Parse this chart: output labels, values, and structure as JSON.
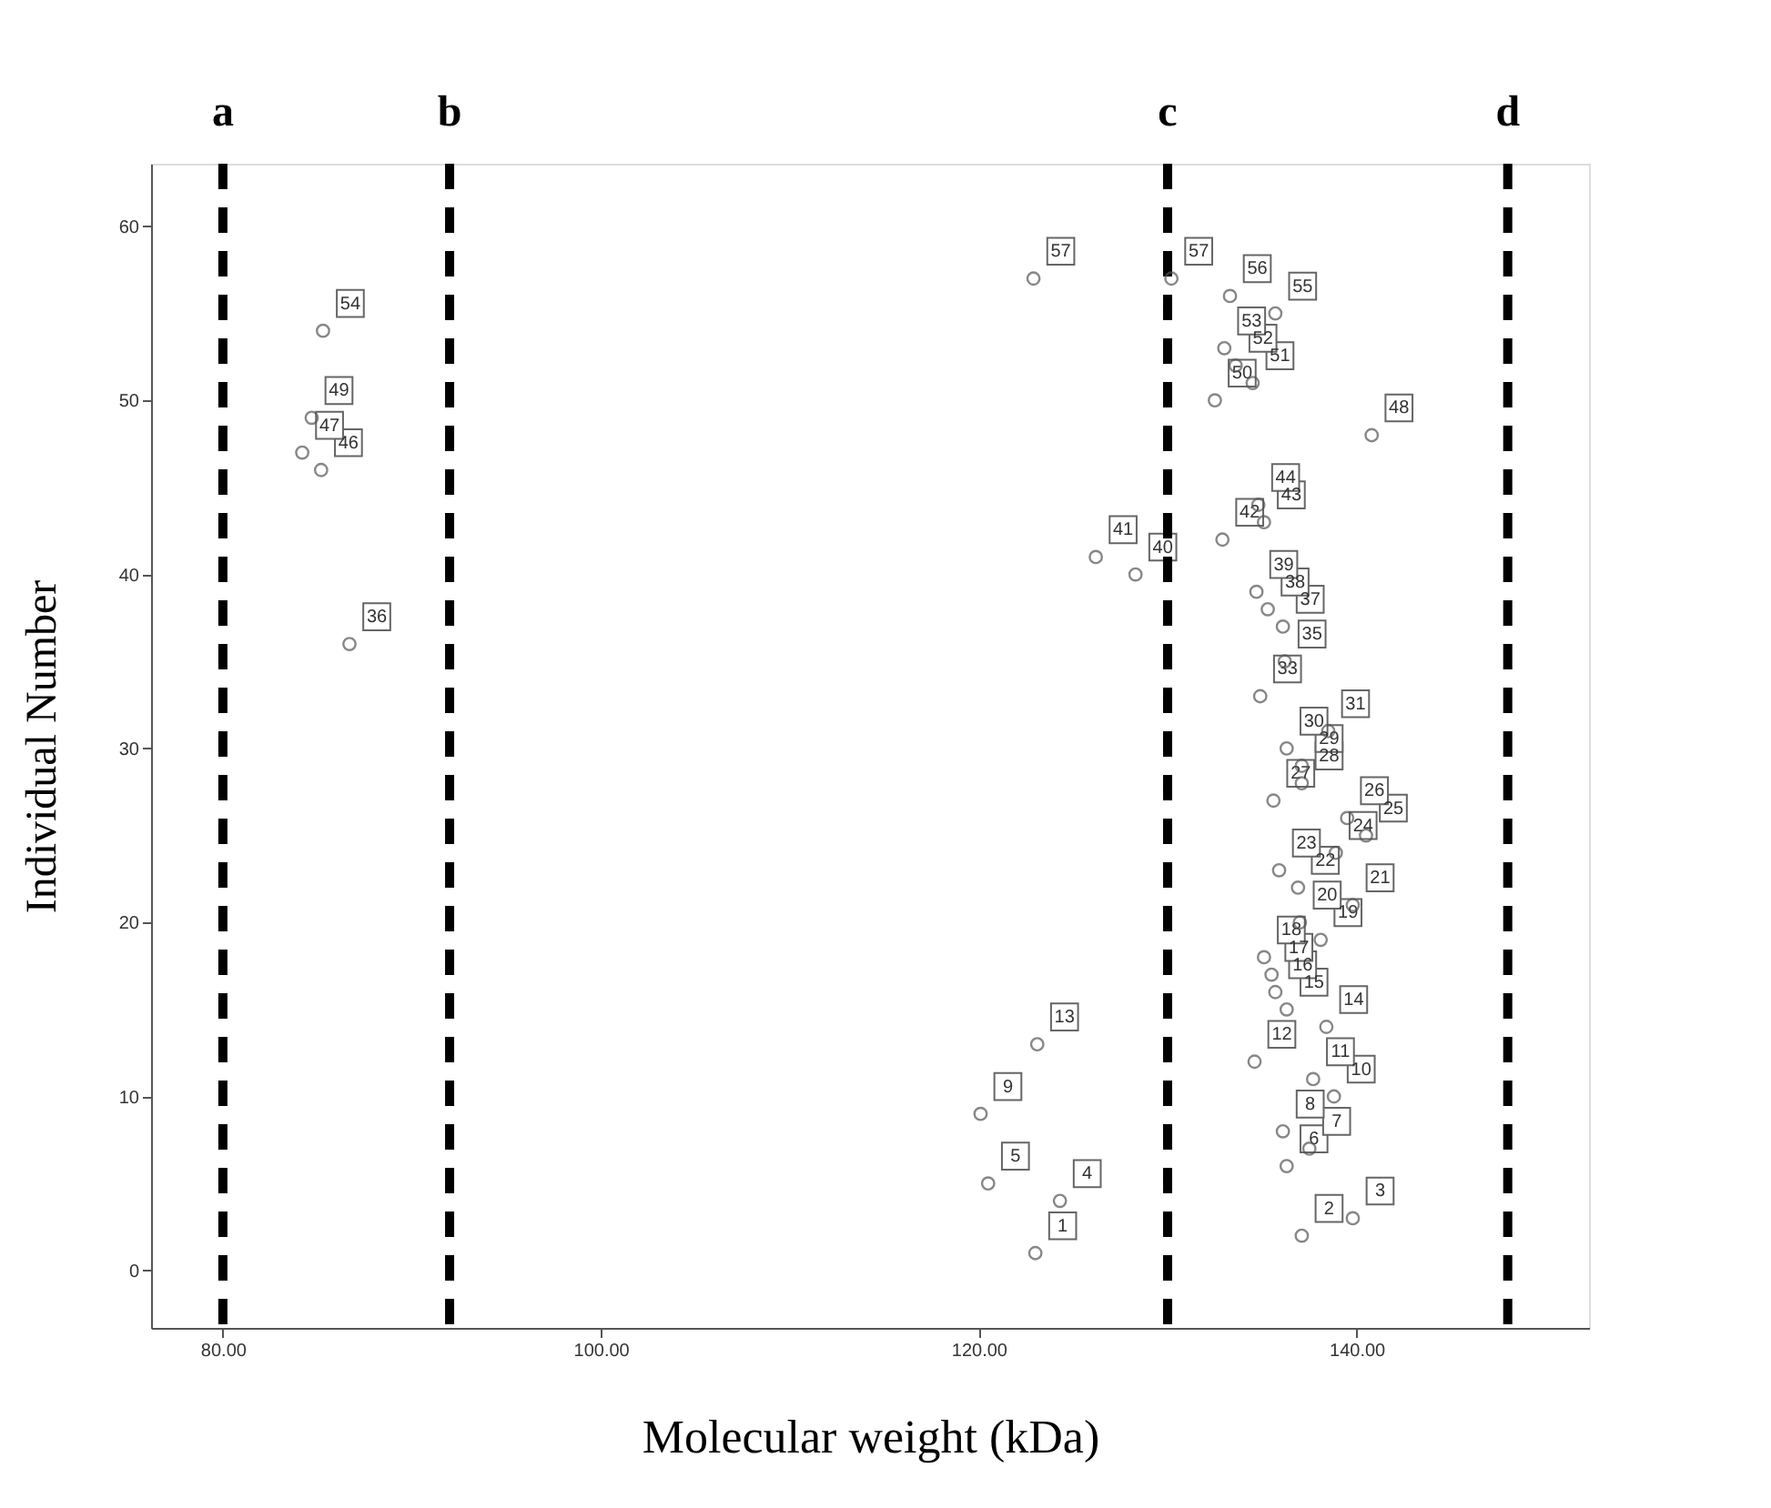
{
  "chart_data": {
    "type": "scatter",
    "xlabel": "Molecular weight (kDa)",
    "ylabel": "Individual Number",
    "x": [
      123.0,
      137.1,
      139.8,
      124.3,
      120.5,
      136.3,
      137.5,
      136.1,
      120.1,
      138.8,
      137.7,
      134.6,
      123.1,
      138.4,
      136.3,
      135.7,
      135.5,
      135.1,
      138.1,
      137.0,
      139.8,
      136.9,
      135.9,
      138.9,
      140.5,
      139.5,
      135.6,
      137.1,
      137.1,
      136.3,
      138.5,
      134.9,
      136.2,
      86.7,
      136.1,
      135.3,
      134.7,
      128.3,
      126.2,
      132.9,
      135.1,
      134.8,
      85.2,
      84.2,
      140.8,
      84.7,
      132.5,
      134.5,
      133.6,
      133.0,
      85.3,
      135.7,
      133.3,
      130.2,
      122.9
    ],
    "values": [
      1,
      2,
      3,
      4,
      5,
      6,
      7,
      8,
      9,
      10,
      11,
      12,
      13,
      14,
      15,
      16,
      17,
      18,
      19,
      20,
      21,
      22,
      23,
      24,
      25,
      26,
      27,
      28,
      29,
      30,
      31,
      33,
      35,
      36,
      37,
      38,
      39,
      40,
      41,
      42,
      43,
      44,
      46,
      47,
      48,
      49,
      50,
      51,
      52,
      53,
      54,
      55,
      56,
      57,
      57
    ],
    "color": "#555555",
    "marker": "circle",
    "data_labels": true,
    "grid": false,
    "xlim": [
      76.2,
      152.3
    ],
    "ylim": [
      -3.3,
      63.6
    ],
    "xticks": [
      {
        "value": 80,
        "label": "80.00"
      },
      {
        "value": 100,
        "label": "100.00"
      },
      {
        "value": 120,
        "label": "120.00"
      },
      {
        "value": 140,
        "label": "140.00"
      }
    ],
    "yticks": [
      0,
      10,
      20,
      30,
      40,
      50,
      60
    ],
    "ref_lines": [
      {
        "axis": "x",
        "value": 80,
        "label": "a",
        "color": "#000000",
        "line_style": "dashed"
      },
      {
        "axis": "x",
        "value": 92,
        "label": "b",
        "color": "#000000",
        "line_style": "dashed"
      },
      {
        "axis": "x",
        "value": 130,
        "label": "c",
        "color": "#000000",
        "line_style": "dashed"
      },
      {
        "axis": "x",
        "value": 148,
        "label": "d",
        "color": "#000000",
        "line_style": "dashed"
      }
    ]
  }
}
